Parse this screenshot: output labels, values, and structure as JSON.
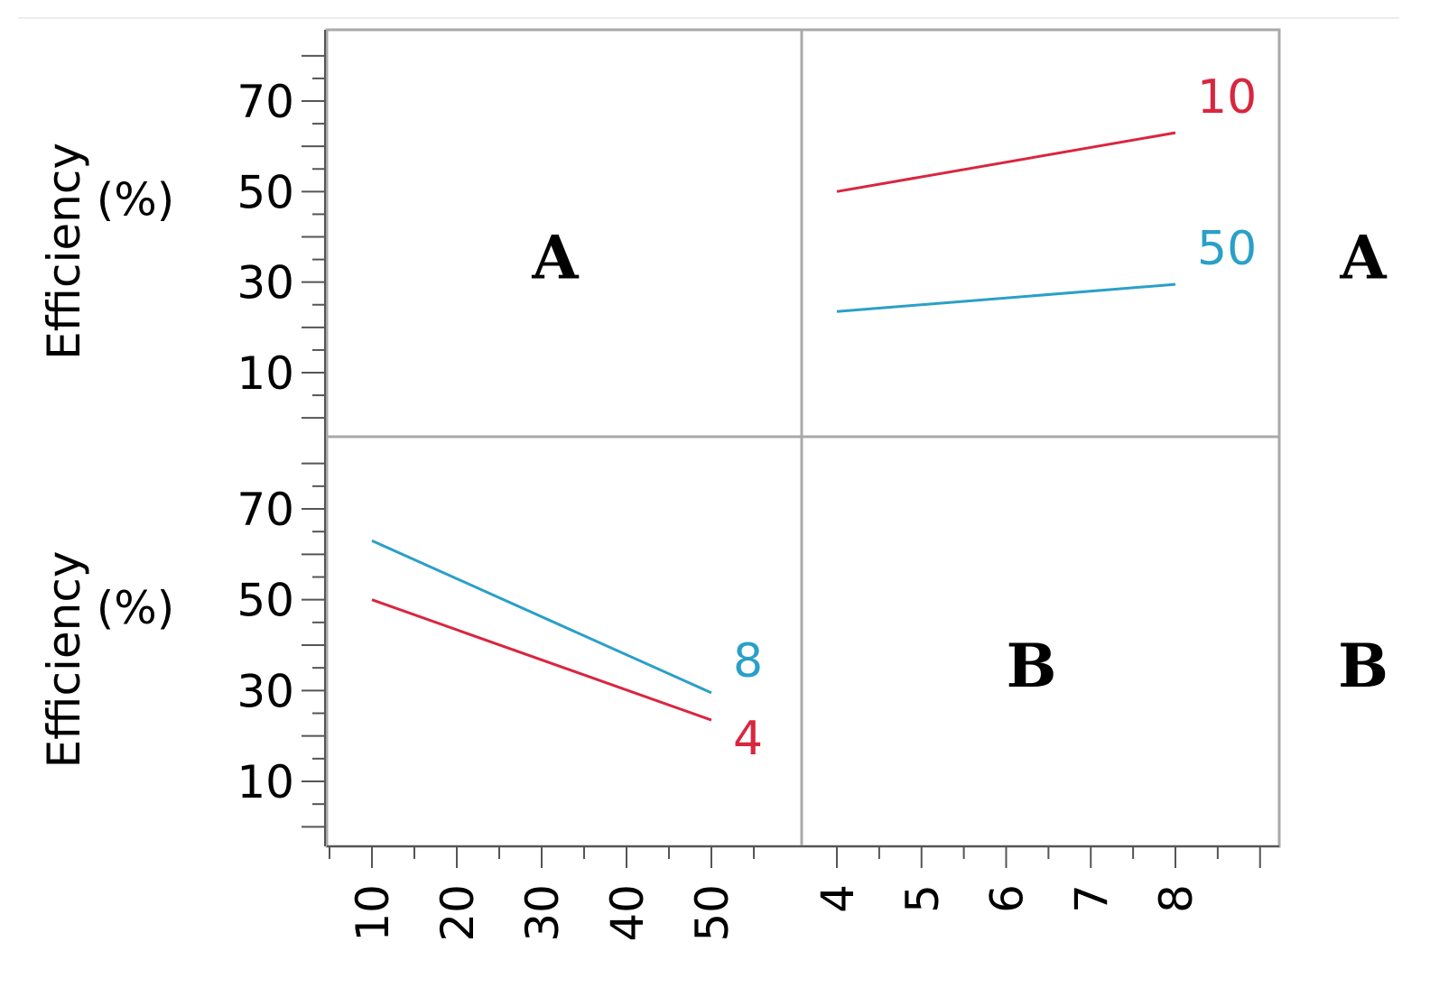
{
  "chart_data": {
    "type": "line",
    "grid": false,
    "layout": "2x2 interaction plot matrix",
    "y_axis_label": "Efficiency\n(%)",
    "y_ticks": [
      10,
      30,
      50,
      70
    ],
    "y_range": [
      0,
      85
    ],
    "factors": [
      {
        "label": "A",
        "ticks": [
          10,
          20,
          30,
          40,
          50
        ],
        "range": [
          0,
          60
        ]
      },
      {
        "label": "B",
        "ticks": [
          4,
          5,
          6,
          7,
          8
        ],
        "range": [
          3.6,
          9.8
        ]
      }
    ],
    "panels": [
      {
        "row": 0,
        "col": 0,
        "diagonal_label": "A"
      },
      {
        "row": 0,
        "col": 1,
        "x_factor": "B",
        "trace_factor": "A",
        "series": [
          {
            "name": "10",
            "color": "#d9263f",
            "x": [
              4,
              8
            ],
            "y": [
              50,
              63
            ]
          },
          {
            "name": "50",
            "color": "#2aa0c8",
            "x": [
              4,
              8
            ],
            "y": [
              23.5,
              29.5
            ]
          }
        ]
      },
      {
        "row": 1,
        "col": 0,
        "x_factor": "A",
        "trace_factor": "B",
        "series": [
          {
            "name": "8",
            "color": "#2aa0c8",
            "x": [
              10,
              50
            ],
            "y": [
              63,
              29.5
            ]
          },
          {
            "name": "4",
            "color": "#d9263f",
            "x": [
              10,
              50
            ],
            "y": [
              50,
              23.5
            ]
          }
        ]
      },
      {
        "row": 1,
        "col": 1,
        "diagonal_label": "B"
      }
    ],
    "row_labels": [
      "A",
      "B"
    ]
  }
}
